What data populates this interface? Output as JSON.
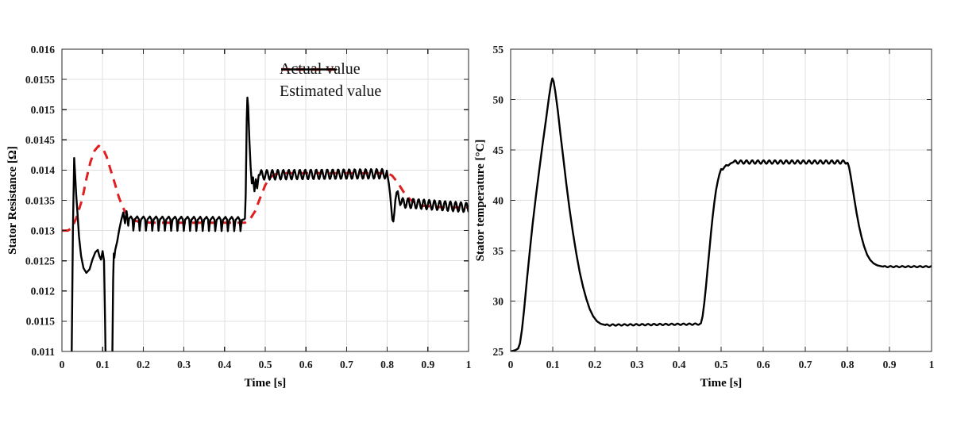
{
  "page": {
    "background": "#ffffff",
    "grid_color": "#e0e0e0",
    "axis_color": "#262626"
  },
  "chart_data": [
    {
      "type": "line",
      "title": "",
      "xlabel": "Time [s]",
      "ylabel": "Stator Resistance [Ω]",
      "xlim": [
        0,
        1
      ],
      "ylim": [
        0.011,
        0.016
      ],
      "grid": true,
      "xticks": [
        0,
        0.1,
        0.2,
        0.3,
        0.4,
        0.5,
        0.6,
        0.7,
        0.8,
        0.9,
        1
      ],
      "xtick_labels": [
        "0",
        "0.1",
        "0.2",
        "0.3",
        "0.4",
        "0.5",
        "0.6",
        "0.7",
        "0.8",
        "0.9",
        "1"
      ],
      "yticks": [
        0.011,
        0.0115,
        0.012,
        0.0125,
        0.013,
        0.0135,
        0.014,
        0.0145,
        0.015,
        0.0155,
        0.016
      ],
      "ytick_labels": [
        "0.011",
        "0.0115",
        "0.012",
        "0.0125",
        "0.013",
        "0.0135",
        "0.014",
        "0.0145",
        "0.015",
        "0.0155",
        "0.016"
      ],
      "legend": {
        "position": "top-right-inside",
        "entries": [
          {
            "label": "Actual value",
            "color": "#e02020",
            "dashed": true
          },
          {
            "label": "Estimated value",
            "color": "#000000",
            "dashed": false
          }
        ]
      },
      "series": [
        {
          "name": "actual-value",
          "color": "#e02020",
          "width": 3,
          "dash": [
            11,
            8
          ],
          "segments": [
            {
              "type": "pts",
              "pts": [
                [
                  0,
                  0.013
                ],
                [
                  0.015,
                  0.013
                ],
                [
                  0.025,
                  0.01305
                ],
                [
                  0.035,
                  0.0132
                ],
                [
                  0.05,
                  0.01352
                ],
                [
                  0.06,
                  0.01385
                ],
                [
                  0.07,
                  0.01413
                ],
                [
                  0.08,
                  0.01432
                ],
                [
                  0.09,
                  0.0144
                ],
                [
                  0.1,
                  0.01437
                ],
                [
                  0.11,
                  0.01422
                ],
                [
                  0.12,
                  0.014
                ],
                [
                  0.13,
                  0.01378
                ],
                [
                  0.14,
                  0.01355
                ],
                [
                  0.15,
                  0.01338
                ],
                [
                  0.16,
                  0.01326
                ],
                [
                  0.17,
                  0.01319
                ],
                [
                  0.19,
                  0.01314
                ],
                [
                  0.22,
                  0.01313
                ],
                [
                  0.45,
                  0.01313
                ],
                [
                  0.462,
                  0.01318
                ],
                [
                  0.475,
                  0.01332
                ],
                [
                  0.488,
                  0.01355
                ],
                [
                  0.5,
                  0.01375
                ],
                [
                  0.512,
                  0.01388
                ],
                [
                  0.525,
                  0.01393
                ],
                [
                  0.55,
                  0.01395
                ],
                [
                  0.8,
                  0.01395
                ],
                [
                  0.812,
                  0.01391
                ],
                [
                  0.825,
                  0.0138
                ],
                [
                  0.84,
                  0.01364
                ],
                [
                  0.855,
                  0.01352
                ],
                [
                  0.87,
                  0.01345
                ],
                [
                  0.89,
                  0.01341
                ],
                [
                  0.92,
                  0.01339
                ],
                [
                  1.0,
                  0.01338
                ]
              ]
            }
          ]
        },
        {
          "name": "estimated-value",
          "color": "#000000",
          "width": 2.4,
          "dash": null,
          "segments": [
            {
              "type": "pts",
              "pts": [
                [
                  0.0235,
                  0.0106
                ],
                [
                  0.027,
                  0.013
                ],
                [
                  0.03,
                  0.0142
                ],
                [
                  0.0325,
                  0.01392
                ],
                [
                  0.035,
                  0.0136
                ],
                [
                  0.038,
                  0.0133
                ],
                [
                  0.042,
                  0.0129
                ],
                [
                  0.047,
                  0.01258
                ],
                [
                  0.053,
                  0.01238
                ],
                [
                  0.06,
                  0.0123
                ],
                [
                  0.068,
                  0.01236
                ],
                [
                  0.075,
                  0.01252
                ],
                [
                  0.082,
                  0.01264
                ],
                [
                  0.088,
                  0.01268
                ],
                [
                  0.092,
                  0.01258
                ],
                [
                  0.096,
                  0.01252
                ],
                [
                  0.1,
                  0.01266
                ],
                [
                  0.1035,
                  0.0125
                ],
                [
                  0.106,
                  0.0115
                ],
                [
                  0.108,
                  0.0106
                ],
                [
                  0.1235,
                  0.0106
                ],
                [
                  0.126,
                  0.0122
                ],
                [
                  0.1275,
                  0.01262
                ],
                [
                  0.129,
                  0.01255
                ],
                [
                  0.131,
                  0.01268
                ],
                [
                  0.136,
                  0.01282
                ],
                [
                  0.141,
                  0.01302
                ],
                [
                  0.146,
                  0.01318
                ],
                [
                  0.151,
                  0.0133
                ],
                [
                  0.155,
                  0.01312
                ],
                [
                  0.159,
                  0.01332
                ],
                [
                  0.163,
                  0.01308
                ]
              ]
            },
            {
              "type": "ripple",
              "shape": "notch",
              "t0": 0.165,
              "t1": 0.448,
              "b0": 0.01313,
              "b1": 0.01312,
              "amp": 0.00013,
              "period": 0.0155
            },
            {
              "type": "pts",
              "pts": [
                [
                  0.45,
                  0.0132
                ],
                [
                  0.452,
                  0.0136
                ],
                [
                  0.4545,
                  0.01485
                ],
                [
                  0.456,
                  0.0152
                ],
                [
                  0.458,
                  0.01505
                ],
                [
                  0.461,
                  0.0145
                ],
                [
                  0.464,
                  0.01405
                ],
                [
                  0.467,
                  0.01378
                ],
                [
                  0.47,
                  0.01388
                ],
                [
                  0.4735,
                  0.01365
                ],
                [
                  0.477,
                  0.01385
                ],
                [
                  0.48,
                  0.0137
                ],
                [
                  0.484,
                  0.01392
                ]
              ]
            },
            {
              "type": "ripple",
              "shape": "sine",
              "t0": 0.487,
              "t1": 0.799,
              "b0": 0.01392,
              "b1": 0.01394,
              "amp": 8e-05,
              "period": 0.0135
            },
            {
              "type": "pts",
              "pts": [
                [
                  0.801,
                  0.0139
                ],
                [
                  0.804,
                  0.01378
                ],
                [
                  0.807,
                  0.0136
                ],
                [
                  0.81,
                  0.01338
                ],
                [
                  0.8125,
                  0.01318
                ],
                [
                  0.815,
                  0.01315
                ],
                [
                  0.8175,
                  0.0133
                ],
                [
                  0.82,
                  0.0135
                ],
                [
                  0.823,
                  0.01363
                ],
                [
                  0.826,
                  0.01365
                ],
                [
                  0.829,
                  0.01352
                ],
                [
                  0.832,
                  0.01342
                ]
              ]
            },
            {
              "type": "ripple",
              "shape": "sine",
              "t0": 0.835,
              "t1": 1.0,
              "b0": 0.01346,
              "b1": 0.01338,
              "amp": 8e-05,
              "period": 0.013
            }
          ]
        }
      ]
    },
    {
      "type": "line",
      "title": "",
      "xlabel": "Time [s]",
      "ylabel": "Stator temperature [°C]",
      "xlim": [
        0,
        1
      ],
      "ylim": [
        25,
        55
      ],
      "grid": true,
      "xticks": [
        0,
        0.1,
        0.2,
        0.3,
        0.4,
        0.5,
        0.6,
        0.7,
        0.8,
        0.9,
        1
      ],
      "xtick_labels": [
        "0",
        "0.1",
        "0.2",
        "0.3",
        "0.4",
        "0.5",
        "0.6",
        "0.7",
        "0.8",
        "0.9",
        "1"
      ],
      "yticks": [
        25,
        30,
        35,
        40,
        45,
        50,
        55
      ],
      "ytick_labels": [
        "25",
        "30",
        "35",
        "40",
        "45",
        "50",
        "55"
      ],
      "legend": null,
      "series": [
        {
          "name": "stator-temperature",
          "color": "#000000",
          "width": 2.4,
          "dash": null,
          "segments": [
            {
              "type": "pts",
              "pts": [
                [
                  0,
                  25.0
                ],
                [
                  0.012,
                  25.15
                ],
                [
                  0.018,
                  25.3
                ],
                [
                  0.022,
                  25.8
                ],
                [
                  0.027,
                  27.2
                ],
                [
                  0.032,
                  29.2
                ],
                [
                  0.038,
                  31.8
                ],
                [
                  0.045,
                  34.8
                ],
                [
                  0.052,
                  37.6
                ],
                [
                  0.06,
                  40.4
                ],
                [
                  0.068,
                  43.0
                ],
                [
                  0.076,
                  45.6
                ],
                [
                  0.084,
                  48.0
                ],
                [
                  0.091,
                  50.2
                ],
                [
                  0.096,
                  51.6
                ],
                [
                  0.099,
                  52.1
                ],
                [
                  0.102,
                  51.8
                ],
                [
                  0.106,
                  50.8
                ],
                [
                  0.112,
                  48.9
                ],
                [
                  0.118,
                  46.7
                ],
                [
                  0.125,
                  44.2
                ],
                [
                  0.132,
                  41.7
                ],
                [
                  0.14,
                  39.1
                ],
                [
                  0.148,
                  36.8
                ],
                [
                  0.156,
                  34.7
                ],
                [
                  0.164,
                  32.9
                ],
                [
                  0.172,
                  31.4
                ],
                [
                  0.18,
                  30.2
                ],
                [
                  0.188,
                  29.2
                ],
                [
                  0.196,
                  28.5
                ],
                [
                  0.205,
                  28.0
                ],
                [
                  0.214,
                  27.75
                ],
                [
                  0.222,
                  27.65
                ]
              ]
            },
            {
              "type": "ripple",
              "shape": "sine",
              "t0": 0.225,
              "t1": 0.45,
              "b0": 27.62,
              "b1": 27.72,
              "amp": 0.07,
              "period": 0.014
            },
            {
              "type": "pts",
              "pts": [
                [
                  0.452,
                  27.8
                ],
                [
                  0.456,
                  28.5
                ],
                [
                  0.46,
                  29.8
                ],
                [
                  0.464,
                  31.4
                ],
                [
                  0.468,
                  33.2
                ],
                [
                  0.472,
                  35.0
                ],
                [
                  0.476,
                  36.8
                ],
                [
                  0.48,
                  38.4
                ],
                [
                  0.484,
                  39.8
                ],
                [
                  0.488,
                  41.0
                ],
                [
                  0.492,
                  41.9
                ],
                [
                  0.496,
                  42.6
                ],
                [
                  0.5,
                  43.1
                ],
                [
                  0.504,
                  43.05
                ],
                [
                  0.508,
                  43.3
                ],
                [
                  0.512,
                  43.5
                ],
                [
                  0.517,
                  43.45
                ],
                [
                  0.522,
                  43.65
                ],
                [
                  0.527,
                  43.75
                ]
              ]
            },
            {
              "type": "ripple",
              "shape": "sine",
              "t0": 0.53,
              "t1": 0.799,
              "b0": 43.8,
              "b1": 43.8,
              "amp": 0.17,
              "period": 0.0135
            },
            {
              "type": "pts",
              "pts": [
                [
                  0.801,
                  43.7
                ],
                [
                  0.804,
                  43.3
                ],
                [
                  0.808,
                  42.4
                ],
                [
                  0.812,
                  41.3
                ],
                [
                  0.817,
                  40.0
                ],
                [
                  0.822,
                  38.7
                ],
                [
                  0.828,
                  37.4
                ],
                [
                  0.834,
                  36.3
                ],
                [
                  0.84,
                  35.4
                ],
                [
                  0.847,
                  34.6
                ],
                [
                  0.854,
                  34.1
                ],
                [
                  0.862,
                  33.75
                ],
                [
                  0.871,
                  33.55
                ],
                [
                  0.881,
                  33.45
                ]
              ]
            },
            {
              "type": "ripple",
              "shape": "sine",
              "t0": 0.885,
              "t1": 1.0,
              "b0": 33.42,
              "b1": 33.42,
              "amp": 0.06,
              "period": 0.014
            }
          ]
        }
      ]
    }
  ]
}
